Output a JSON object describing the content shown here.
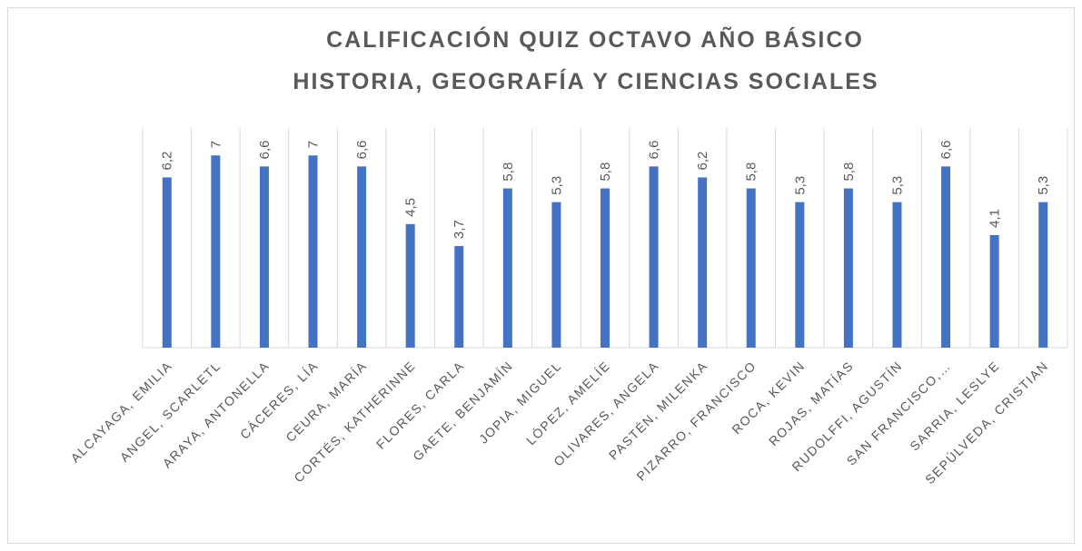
{
  "chart_data": {
    "type": "bar",
    "title": [
      "CALIFICACIÓN QUIZ OCTAVO AÑO BÁSICO",
      "HISTORIA, GEOGRAFÍA Y CIENCIAS SOCIALES"
    ],
    "categories": [
      "ALCAYAGA, EMILIA",
      "ANGEL, SCARLETL",
      "ARAYA, ANTONELLA",
      "CÁCERES, LÍA",
      "CEURA, MARÍA",
      "CORTÉS, KATHERINNE",
      "FLORES, CARLA",
      "GAETE, BENJAMÍN",
      "JOPIA, MIGUEL",
      "LÓPEZ, AMELÍE",
      "OLIVARES, ANGELA",
      "PASTÉN, MILENKA",
      "PIZARRO, FRANCISCO",
      "ROCA, KEVIN",
      "ROJAS, MATÍAS",
      "RUDOLFFI, AGUSTÍN",
      "SAN FRANCISCO,…",
      "SARRIA, LESLYE",
      "SEPÚLVEDA, CRISTIAN"
    ],
    "values": [
      6.2,
      7,
      6.6,
      7,
      6.6,
      4.5,
      3.7,
      5.8,
      5.3,
      5.8,
      6.6,
      6.2,
      5.8,
      5.3,
      5.8,
      5.3,
      6.6,
      4.1,
      5.3
    ],
    "value_labels": [
      "6,2",
      "7",
      "6,6",
      "7",
      "6,6",
      "4,5",
      "3,7",
      "5,8",
      "5,3",
      "5,8",
      "6,6",
      "6,2",
      "5,8",
      "5,3",
      "5,8",
      "5,3",
      "6,6",
      "4,1",
      "5,3"
    ],
    "color": "#4472c4",
    "ylim": [
      0,
      8
    ]
  }
}
